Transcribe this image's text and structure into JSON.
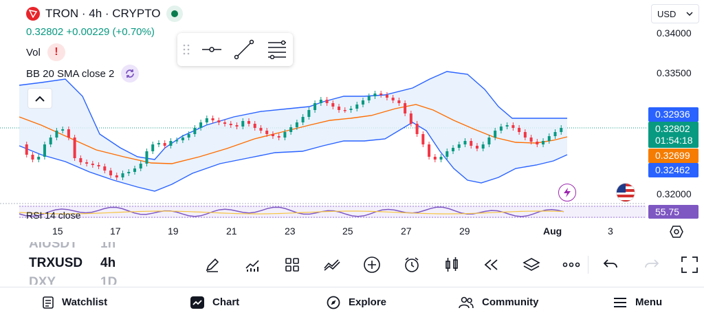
{
  "header": {
    "title": "TRON · 4h · CRYPTO",
    "price": "0.32802",
    "change": "+0.00229 (+0.70%)"
  },
  "indicators": {
    "vol": "Vol",
    "bb": "BB 20 SMA close 2",
    "rsi": "RSI 14 close"
  },
  "currency": "USD",
  "price_axis": [
    "0.34000",
    "0.33500",
    "0.32000"
  ],
  "price_tags": {
    "bb_upper": "0.32936",
    "last": "0.32802",
    "countdown": "01:54:18",
    "bb_mid": "0.32699",
    "bb_lower": "0.32462",
    "rsi": "55.75"
  },
  "dates": [
    "15",
    "17",
    "19",
    "21",
    "23",
    "25",
    "27",
    "29",
    "Aug",
    "3"
  ],
  "watchlist": {
    "prev": "AIUSDT",
    "prev_interval": "1h",
    "current": "TRXUSD",
    "current_interval": "4h",
    "next": "DXY",
    "next_interval": "1D"
  },
  "nav": {
    "watchlist": "Watchlist",
    "chart": "Chart",
    "explore": "Explore",
    "community": "Community",
    "menu": "Menu"
  },
  "colors": {
    "up": "#089981",
    "down": "#f23645",
    "bb_line": "#2962ff",
    "bb_fill": "#e3effd",
    "mid_line": "#ff6d00",
    "rsi": "#7e57c2"
  }
}
